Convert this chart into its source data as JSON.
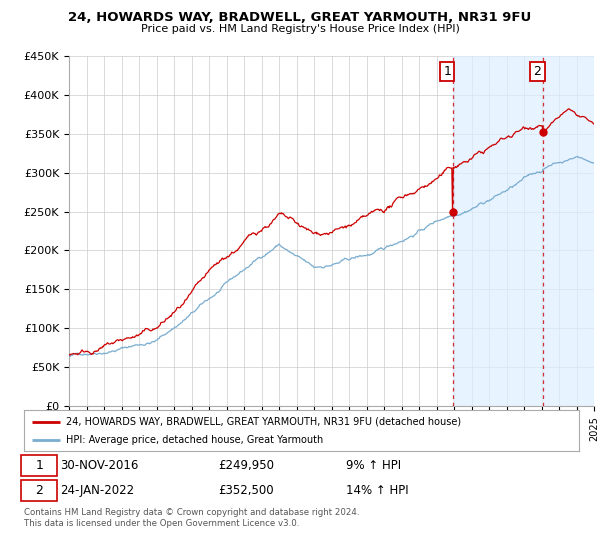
{
  "title": "24, HOWARDS WAY, BRADWELL, GREAT YARMOUTH, NR31 9FU",
  "subtitle": "Price paid vs. HM Land Registry's House Price Index (HPI)",
  "legend_line1": "24, HOWARDS WAY, BRADWELL, GREAT YARMOUTH, NR31 9FU (detached house)",
  "legend_line2": "HPI: Average price, detached house, Great Yarmouth",
  "annotation1_date": "30-NOV-2016",
  "annotation1_price": "£249,950",
  "annotation1_hpi": "9% ↑ HPI",
  "annotation2_date": "24-JAN-2022",
  "annotation2_price": "£352,500",
  "annotation2_hpi": "14% ↑ HPI",
  "footer": "Contains HM Land Registry data © Crown copyright and database right 2024.\nThis data is licensed under the Open Government Licence v3.0.",
  "red_color": "#cc0000",
  "blue_color": "#7aadcf",
  "shaded_color": "#ddeeff",
  "sale1_x": 2016.92,
  "sale1_y": 249950,
  "sale2_x": 2022.07,
  "sale2_y": 352500,
  "ylim": [
    0,
    450000
  ],
  "yticks": [
    0,
    50000,
    100000,
    150000,
    200000,
    250000,
    300000,
    350000,
    400000,
    450000
  ],
  "xmin": 1995,
  "xmax": 2025
}
